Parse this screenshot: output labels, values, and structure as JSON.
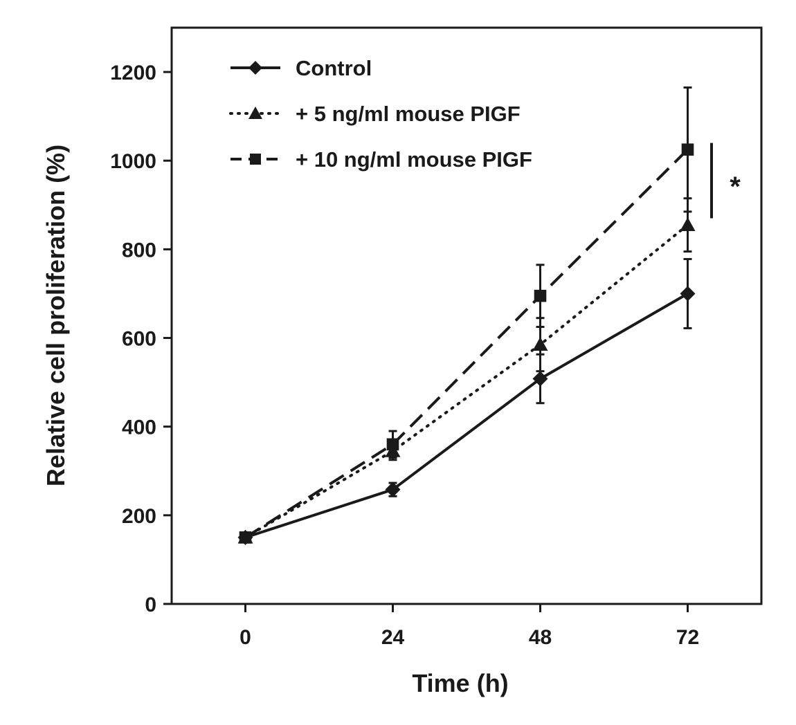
{
  "chart_data": {
    "type": "line",
    "xlabel": "Time (h)",
    "ylabel": "Relative cell proliferation (%)",
    "x": [
      0,
      24,
      48,
      72
    ],
    "xticks": [
      0,
      24,
      48,
      72
    ],
    "xlim": [
      -12,
      84
    ],
    "yticks": [
      0,
      200,
      400,
      600,
      800,
      1000,
      1200
    ],
    "ylim": [
      0,
      1300
    ],
    "grid": false,
    "legend_position": "top-left",
    "series": [
      {
        "name": "Control",
        "linestyle": "solid",
        "marker": "diamond",
        "values": [
          150,
          258,
          508,
          700
        ],
        "errors": [
          10,
          15,
          55,
          78
        ]
      },
      {
        "name": "+ 5 ng/ml mouse PIGF",
        "linestyle": "dotted",
        "marker": "triangle",
        "values": [
          150,
          345,
          585,
          855
        ],
        "errors": [
          10,
          20,
          60,
          60
        ]
      },
      {
        "name": "+ 10 ng/ml mouse PIGF",
        "linestyle": "dashed",
        "marker": "square",
        "values": [
          150,
          360,
          695,
          1025
        ],
        "errors": [
          10,
          30,
          70,
          140
        ]
      }
    ],
    "annotation": {
      "text": "*",
      "y_range": [
        870,
        1040
      ]
    }
  }
}
